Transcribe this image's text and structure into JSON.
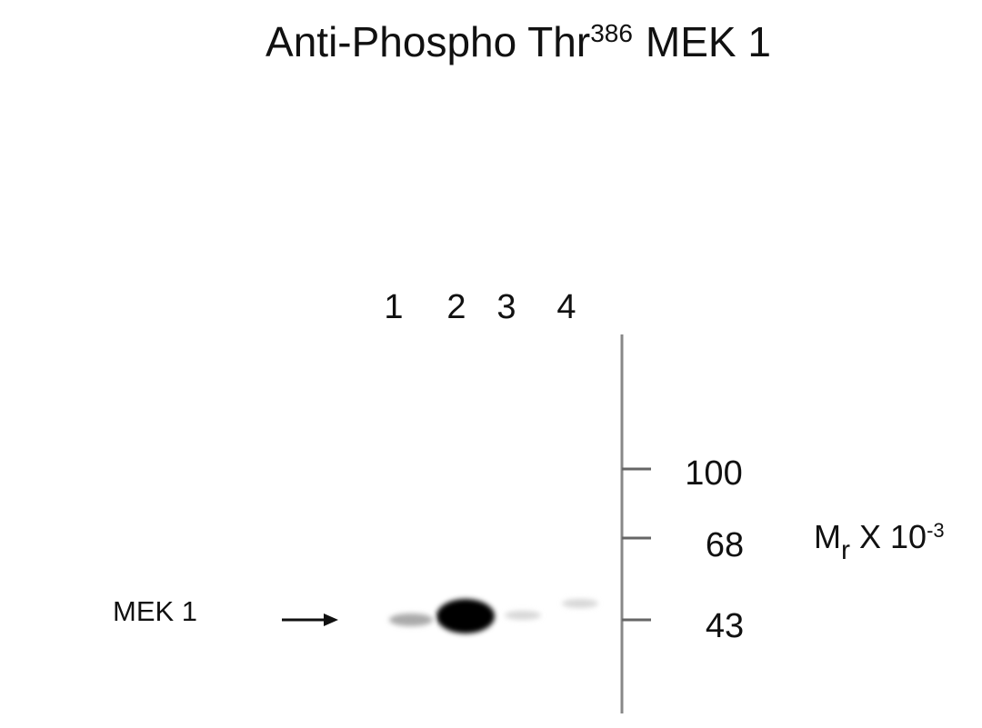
{
  "title": {
    "text": "Anti-Phospho Thr",
    "superscript": "386",
    "suffix": "MEK 1"
  },
  "lanes": [
    "1",
    "2",
    "3",
    "4"
  ],
  "markers": [
    "100",
    "68",
    "43"
  ],
  "mass_label": {
    "text": "M",
    "subscript": "r",
    "suffix": "X 10",
    "superscript": "-3"
  },
  "band_label": "MEK 1"
}
